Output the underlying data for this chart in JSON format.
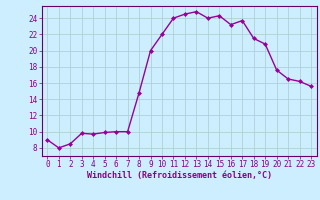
{
  "x": [
    0,
    1,
    2,
    3,
    4,
    5,
    6,
    7,
    8,
    9,
    10,
    11,
    12,
    13,
    14,
    15,
    16,
    17,
    18,
    19,
    20,
    21,
    22,
    23
  ],
  "y": [
    9.0,
    8.0,
    8.5,
    9.8,
    9.7,
    9.9,
    10.0,
    10.0,
    14.8,
    20.0,
    22.0,
    24.0,
    24.5,
    24.8,
    24.0,
    24.3,
    23.2,
    23.7,
    21.5,
    20.8,
    17.6,
    16.5,
    16.2,
    15.6
  ],
  "line_color": "#990099",
  "marker": "D",
  "marker_size": 2.0,
  "line_width": 1.0,
  "xlabel": "Windchill (Refroidissement éolien,°C)",
  "xlabel_fontsize": 6.0,
  "yticks": [
    8,
    10,
    12,
    14,
    16,
    18,
    20,
    22,
    24
  ],
  "xlim": [
    -0.5,
    23.5
  ],
  "ylim": [
    7.0,
    25.5
  ],
  "bg_color": "#cceeff",
  "grid_color": "#aacccc",
  "tick_color": "#880088",
  "tick_fontsize": 5.5,
  "spine_color": "#660066"
}
